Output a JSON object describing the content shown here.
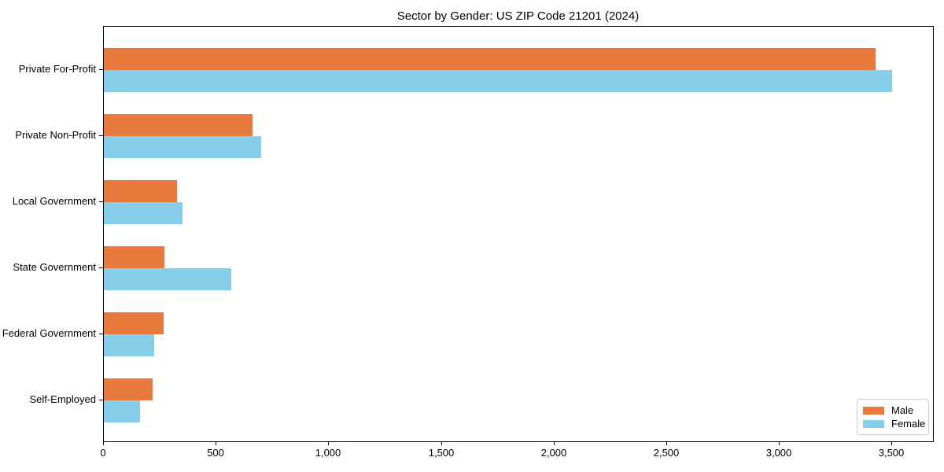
{
  "chart_data": {
    "type": "bar",
    "orientation": "horizontal",
    "title": "Sector by Gender: US ZIP Code 21201 (2024)",
    "categories": [
      "Private For-Profit",
      "Private Non-Profit",
      "Local Government",
      "State Government",
      "Federal Government",
      "Self-Employed"
    ],
    "series": [
      {
        "name": "Male",
        "color": "#E8793C",
        "values": [
          3425,
          660,
          325,
          270,
          265,
          215
        ]
      },
      {
        "name": "Female",
        "color": "#87CEEB",
        "values": [
          3500,
          700,
          350,
          565,
          225,
          160
        ]
      }
    ],
    "xlabel": "",
    "ylabel": "",
    "xlim": [
      0,
      3680
    ],
    "x_ticks": [
      0,
      500,
      1000,
      1500,
      2000,
      2500,
      3000,
      3500
    ],
    "x_tick_labels": [
      "0",
      "500",
      "1,000",
      "1,500",
      "2,000",
      "2,500",
      "3,000",
      "3,500"
    ],
    "grid": false,
    "legend_position": "lower right",
    "background_color": "#ffffff",
    "spine_color": "#000000"
  }
}
